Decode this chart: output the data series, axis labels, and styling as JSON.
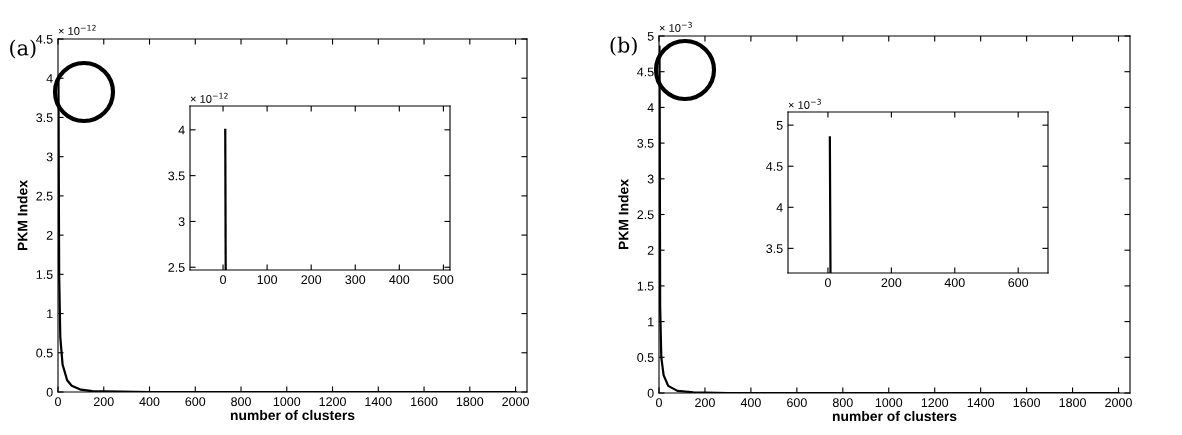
{
  "chart_data": [
    {
      "type": "line",
      "title": "(a)",
      "xlabel": "number of clusters",
      "ylabel": "PKM Index",
      "annotations": [
        "× 10$^{−12}$"
      ],
      "xlim": [
        0,
        2050
      ],
      "xticks": [
        0,
        200,
        400,
        600,
        800,
        1000,
        1200,
        1400,
        1600,
        1800,
        2000
      ],
      "ylim": [
        0,
        4.5
      ],
      "yticks": [
        0,
        0.5,
        1,
        1.5,
        2,
        2.5,
        3,
        3.5,
        4,
        4.5
      ],
      "grid": false,
      "series": [
        {
          "color": "#000000",
          "x": [
            2,
            5,
            10,
            20,
            40,
            60,
            100,
            150,
            400,
            2000
          ],
          "values": [
            4.0,
            1.5,
            0.7,
            0.35,
            0.15,
            0.08,
            0.03,
            0.01,
            0.0,
            0.0
          ]
        }
      ]
    },
    {
      "type": "line",
      "annotations": [
        "× 10$^{−12}$"
      ],
      "xlim": [
        -75,
        515
      ],
      "xticks": [
        0,
        100,
        200,
        300,
        400,
        500
      ],
      "ylim": [
        2.47,
        4.26
      ],
      "yticks": [
        2.5,
        3,
        3.5,
        4
      ],
      "grid": false,
      "series": [
        {
          "color": "#000000",
          "x": [
            5,
            6
          ],
          "values": [
            4.0,
            2.47
          ]
        }
      ]
    },
    {
      "type": "line",
      "title": "(b)",
      "xlabel": "number of clusters",
      "ylabel": "PKM Index",
      "annotations": [
        "× 10$^{−3}$"
      ],
      "xlim": [
        0,
        2050
      ],
      "xticks": [
        0,
        200,
        400,
        600,
        800,
        1000,
        1200,
        1400,
        1600,
        1800,
        2000
      ],
      "ylim": [
        0,
        5
      ],
      "yticks": [
        0,
        0.5,
        1,
        1.5,
        2,
        2.5,
        3,
        3.5,
        4,
        4.5,
        5
      ],
      "grid": false,
      "series": [
        {
          "color": "#000000",
          "x": [
            2,
            3,
            5,
            10,
            20,
            40,
            80,
            150,
            300,
            2000
          ],
          "values": [
            4.85,
            4.05,
            1.2,
            0.5,
            0.25,
            0.1,
            0.03,
            0.01,
            0.0,
            0.0
          ]
        }
      ]
    },
    {
      "type": "line",
      "annotations": [
        "× 10$^{−3}$"
      ],
      "xlim": [
        -126,
        694
      ],
      "xticks": [
        0,
        200,
        400,
        600
      ],
      "ylim": [
        3.2,
        5.16
      ],
      "yticks": [
        3.5,
        4,
        4.5,
        5
      ],
      "grid": false,
      "series": [
        {
          "color": "#000000",
          "x": [
            6,
            7,
            8
          ],
          "values": [
            4.85,
            4.05,
            3.2
          ]
        }
      ]
    }
  ]
}
